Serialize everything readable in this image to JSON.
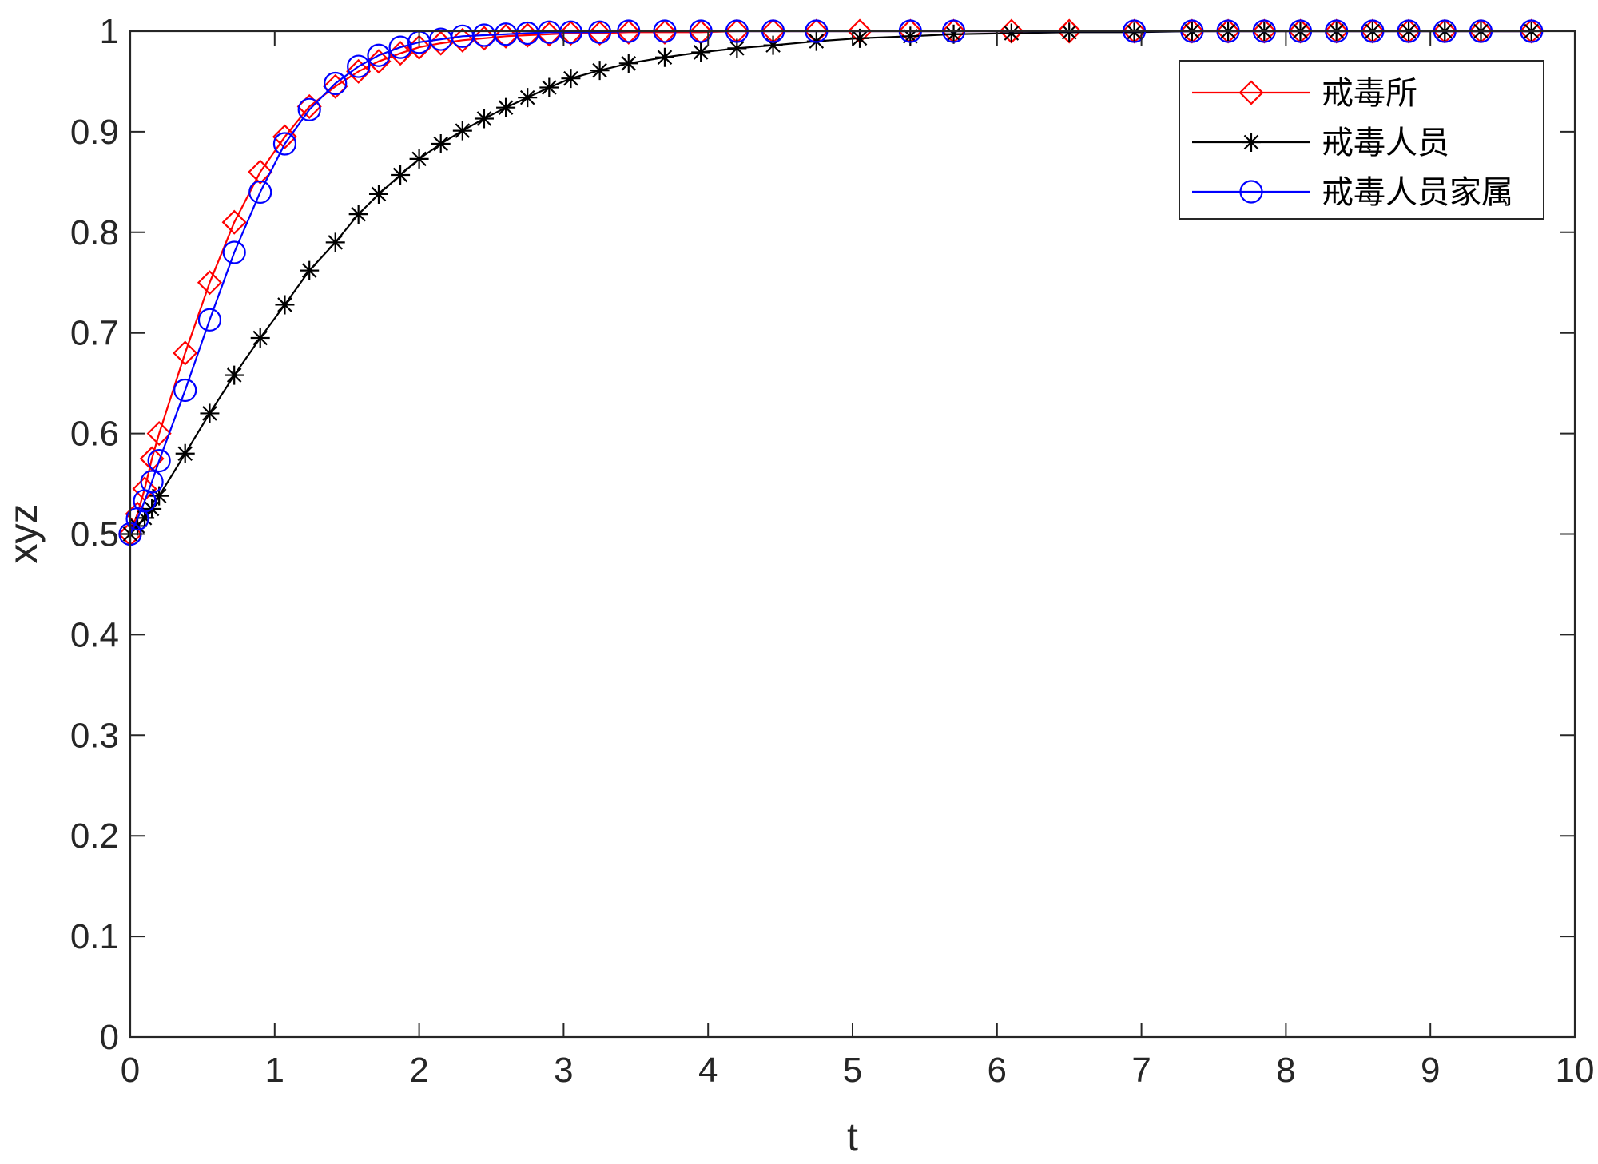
{
  "chart_data": {
    "type": "line",
    "title": "",
    "xlabel": "t",
    "ylabel": "xyz",
    "xlim": [
      0,
      10
    ],
    "ylim": [
      0,
      1
    ],
    "xticks": [
      "0",
      "1",
      "2",
      "3",
      "4",
      "5",
      "6",
      "7",
      "8",
      "9",
      "10"
    ],
    "yticks": [
      "0",
      "0.1",
      "0.2",
      "0.3",
      "0.4",
      "0.5",
      "0.6",
      "0.7",
      "0.8",
      "0.9",
      "1"
    ],
    "grid": false,
    "legend_position": "top-right",
    "series": [
      {
        "name": "戒毒所",
        "color": "#ff0000",
        "marker": "diamond",
        "points": [
          [
            0,
            0.5
          ],
          [
            0.05,
            0.52
          ],
          [
            0.1,
            0.545
          ],
          [
            0.15,
            0.575
          ],
          [
            0.2,
            0.6
          ],
          [
            0.38,
            0.68
          ],
          [
            0.55,
            0.75
          ],
          [
            0.72,
            0.81
          ],
          [
            0.9,
            0.86
          ],
          [
            1.07,
            0.895
          ],
          [
            1.24,
            0.925
          ],
          [
            1.42,
            0.945
          ],
          [
            1.58,
            0.96
          ],
          [
            1.72,
            0.97
          ],
          [
            1.87,
            0.978
          ],
          [
            2.0,
            0.984
          ],
          [
            2.15,
            0.988
          ],
          [
            2.3,
            0.991
          ],
          [
            2.45,
            0.993
          ],
          [
            2.6,
            0.995
          ],
          [
            2.75,
            0.996
          ],
          [
            2.9,
            0.997
          ],
          [
            3.05,
            0.998
          ],
          [
            3.25,
            0.998
          ],
          [
            3.45,
            0.999
          ],
          [
            3.7,
            0.999
          ],
          [
            3.95,
            0.999
          ],
          [
            4.2,
            1.0
          ],
          [
            4.45,
            1.0
          ],
          [
            4.75,
            1.0
          ],
          [
            5.05,
            1.0
          ],
          [
            5.4,
            1.0
          ],
          [
            5.7,
            1.0
          ],
          [
            6.1,
            1.0
          ],
          [
            6.5,
            1.0
          ],
          [
            6.95,
            1.0
          ],
          [
            7.35,
            1.0
          ],
          [
            7.6,
            1.0
          ],
          [
            7.85,
            1.0
          ],
          [
            8.1,
            1.0
          ],
          [
            8.35,
            1.0
          ],
          [
            8.6,
            1.0
          ],
          [
            8.85,
            1.0
          ],
          [
            9.1,
            1.0
          ],
          [
            9.35,
            1.0
          ],
          [
            9.7,
            1.0
          ]
        ]
      },
      {
        "name": "戒毒人员",
        "color": "#000000",
        "marker": "asterisk",
        "points": [
          [
            0,
            0.5
          ],
          [
            0.05,
            0.508
          ],
          [
            0.1,
            0.516
          ],
          [
            0.15,
            0.525
          ],
          [
            0.2,
            0.538
          ],
          [
            0.38,
            0.58
          ],
          [
            0.55,
            0.62
          ],
          [
            0.72,
            0.658
          ],
          [
            0.9,
            0.695
          ],
          [
            1.07,
            0.728
          ],
          [
            1.24,
            0.762
          ],
          [
            1.42,
            0.79
          ],
          [
            1.58,
            0.818
          ],
          [
            1.72,
            0.838
          ],
          [
            1.87,
            0.857
          ],
          [
            2.0,
            0.873
          ],
          [
            2.15,
            0.888
          ],
          [
            2.3,
            0.901
          ],
          [
            2.45,
            0.913
          ],
          [
            2.6,
            0.924
          ],
          [
            2.75,
            0.934
          ],
          [
            2.9,
            0.944
          ],
          [
            3.05,
            0.953
          ],
          [
            3.25,
            0.961
          ],
          [
            3.45,
            0.968
          ],
          [
            3.7,
            0.974
          ],
          [
            3.95,
            0.979
          ],
          [
            4.2,
            0.983
          ],
          [
            4.45,
            0.986
          ],
          [
            4.75,
            0.99
          ],
          [
            5.05,
            0.993
          ],
          [
            5.4,
            0.995
          ],
          [
            5.7,
            0.997
          ],
          [
            6.1,
            0.998
          ],
          [
            6.5,
            0.999
          ],
          [
            6.95,
            0.999
          ],
          [
            7.35,
            1.0
          ],
          [
            7.6,
            1.0
          ],
          [
            7.85,
            1.0
          ],
          [
            8.1,
            1.0
          ],
          [
            8.35,
            1.0
          ],
          [
            8.6,
            1.0
          ],
          [
            8.85,
            1.0
          ],
          [
            9.1,
            1.0
          ],
          [
            9.35,
            1.0
          ],
          [
            9.7,
            1.0
          ]
        ]
      },
      {
        "name": "戒毒人员家属",
        "color": "#0000ff",
        "marker": "circle",
        "points": [
          [
            0,
            0.5
          ],
          [
            0.05,
            0.515
          ],
          [
            0.1,
            0.533
          ],
          [
            0.15,
            0.552
          ],
          [
            0.2,
            0.573
          ],
          [
            0.38,
            0.643
          ],
          [
            0.55,
            0.713
          ],
          [
            0.72,
            0.78
          ],
          [
            0.9,
            0.84
          ],
          [
            1.07,
            0.888
          ],
          [
            1.24,
            0.922
          ],
          [
            1.42,
            0.948
          ],
          [
            1.58,
            0.965
          ],
          [
            1.72,
            0.976
          ],
          [
            1.87,
            0.984
          ],
          [
            2.0,
            0.989
          ],
          [
            2.15,
            0.992
          ],
          [
            2.3,
            0.995
          ],
          [
            2.45,
            0.996
          ],
          [
            2.6,
            0.997
          ],
          [
            2.75,
            0.998
          ],
          [
            2.9,
            0.999
          ],
          [
            3.05,
            0.999
          ],
          [
            3.25,
            0.999
          ],
          [
            3.45,
            1.0
          ],
          [
            3.7,
            1.0
          ],
          [
            3.95,
            1.0
          ],
          [
            4.2,
            1.0
          ],
          [
            4.45,
            1.0
          ],
          [
            4.75,
            1.0
          ],
          [
            5.4,
            1.0
          ],
          [
            5.7,
            1.0
          ],
          [
            6.95,
            1.0
          ],
          [
            7.35,
            1.0
          ],
          [
            7.6,
            1.0
          ],
          [
            7.85,
            1.0
          ],
          [
            8.1,
            1.0
          ],
          [
            8.35,
            1.0
          ],
          [
            8.6,
            1.0
          ],
          [
            8.85,
            1.0
          ],
          [
            9.1,
            1.0
          ],
          [
            9.35,
            1.0
          ],
          [
            9.7,
            1.0
          ]
        ]
      }
    ]
  }
}
